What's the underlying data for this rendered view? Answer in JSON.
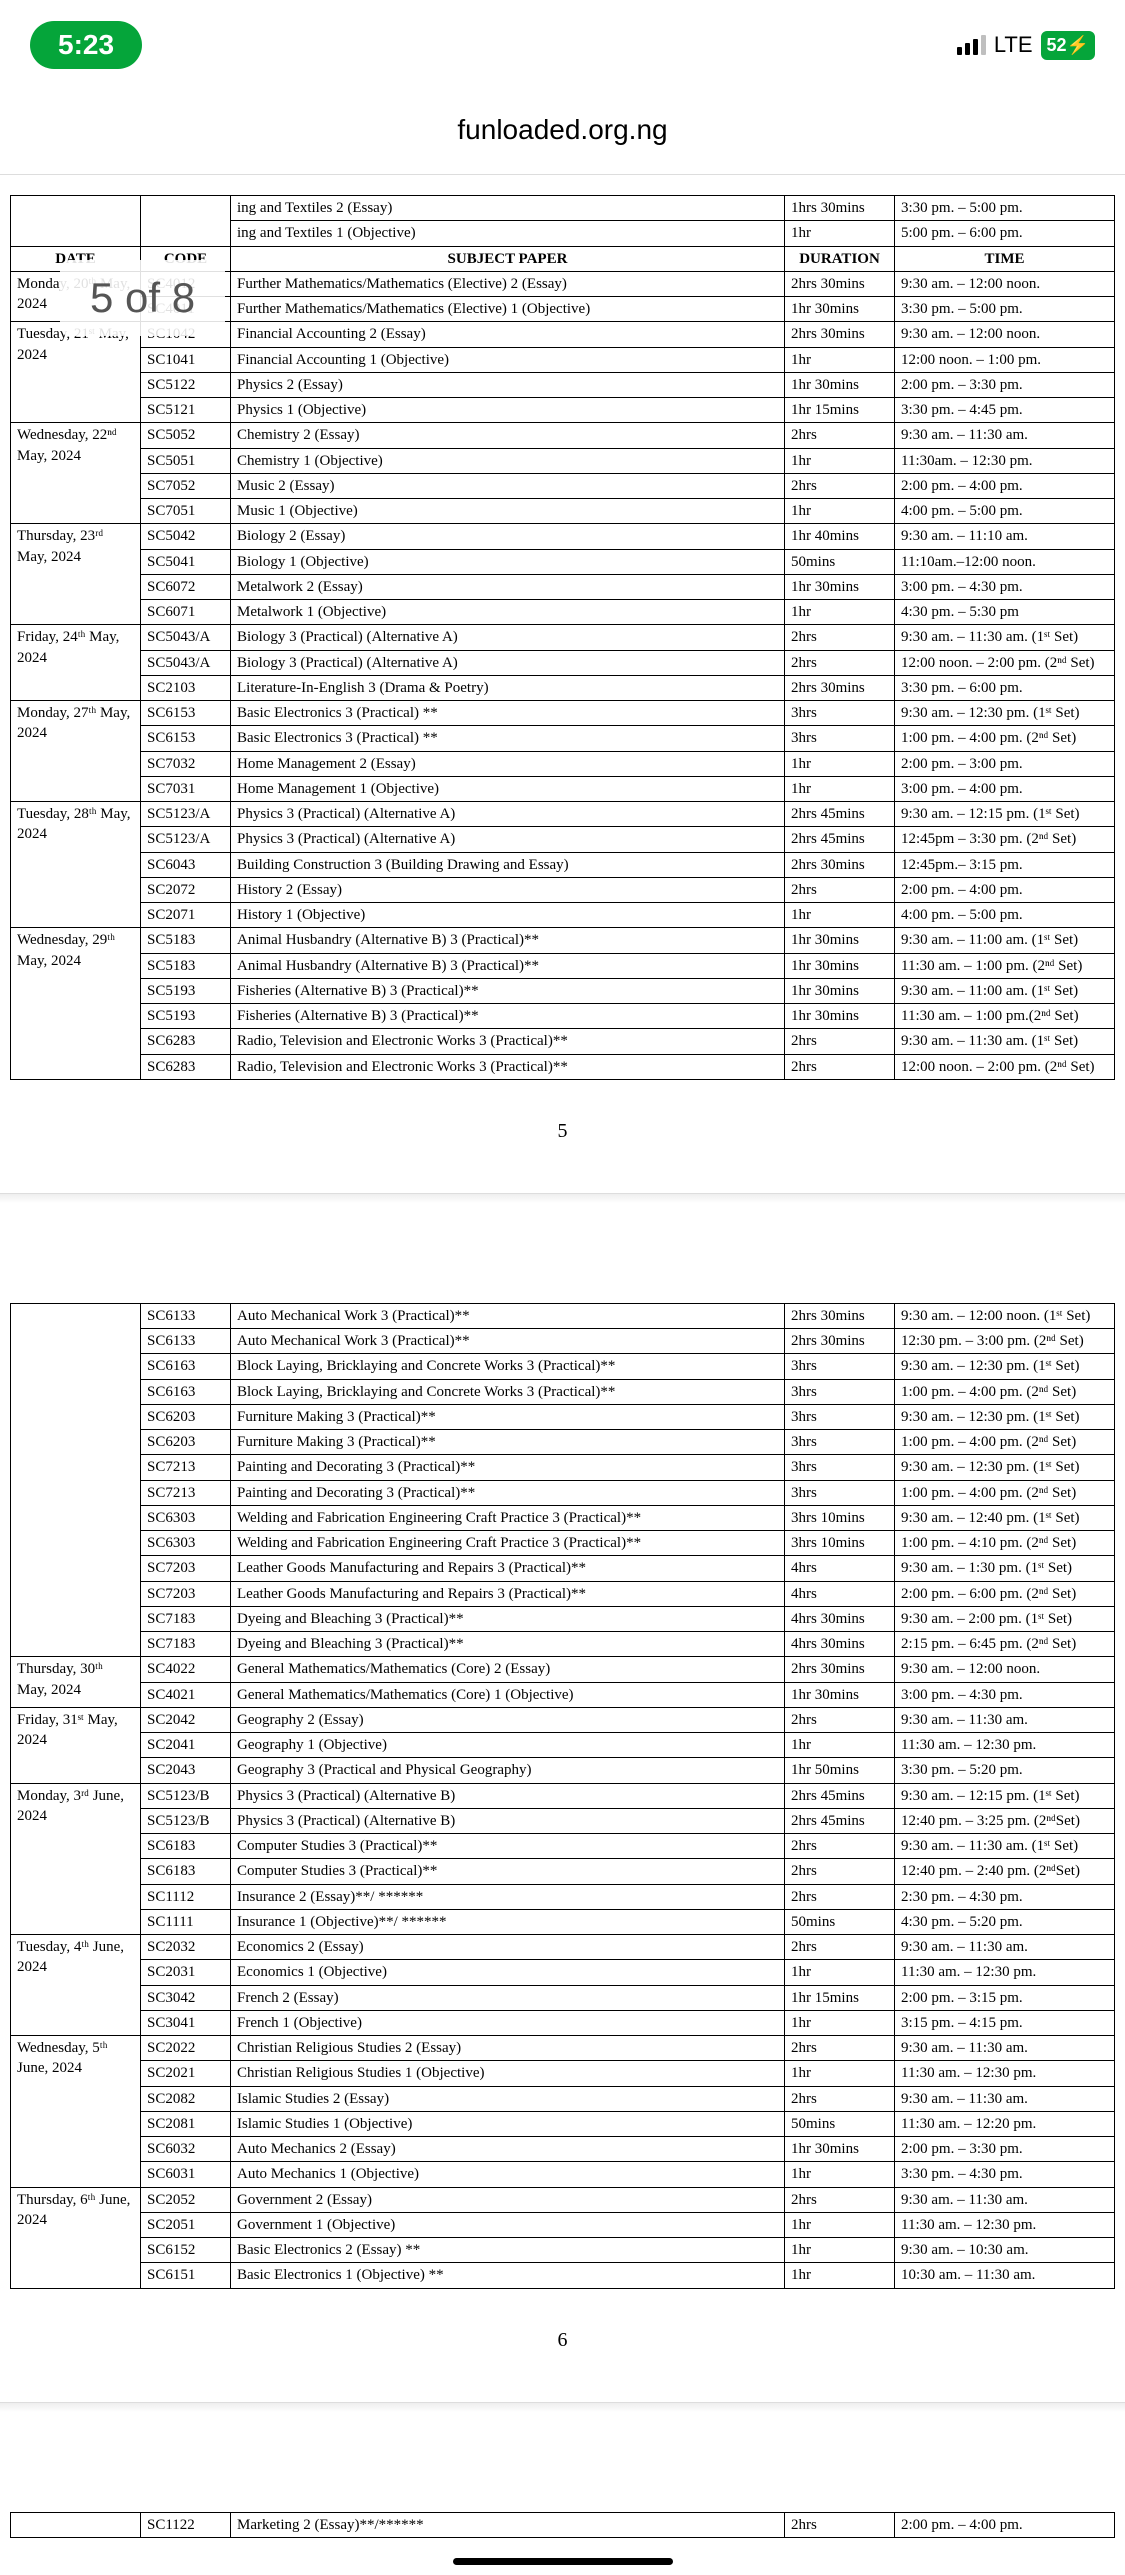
{
  "status": {
    "time": "5:23",
    "network": "LTE",
    "battery": "52"
  },
  "url": "funloaded.org.ng",
  "page_counter": "5 of 8",
  "toprows": [
    {
      "subject": "ing and Textiles 2 (Essay)",
      "duration": "1hrs 30mins",
      "time": "3:30 pm.  –  5:00 pm."
    },
    {
      "subject": "ing and Textiles 1 (Objective)",
      "duration": "1hr",
      "time": "5:00 pm.  –  6:00 pm."
    }
  ],
  "headers": {
    "date": "DATE",
    "code": "CODE",
    "subject": "SUBJECT PAPER",
    "duration": "DURATION",
    "time": "TIME"
  },
  "page5_groups": [
    {
      "date": "Monday, 20ᵗʰ May, 2024",
      "rows": [
        {
          "code": "SC4012",
          "subject": "Further Mathematics/Mathematics (Elective) 2 (Essay)",
          "duration": "2hrs 30mins",
          "time": "9:30 am.  –  12:00 noon."
        },
        {
          "code": "SC4011",
          "subject": "Further Mathematics/Mathematics (Elective) 1 (Objective)",
          "duration": "1hr 30mins",
          "time": "3:30 pm.  –  5:00 pm."
        }
      ]
    },
    {
      "date": "Tuesday, 21ˢᵗ May, 2024",
      "rows": [
        {
          "code": "SC1042",
          "subject": "Financial Accounting 2 (Essay)",
          "duration": "2hrs 30mins",
          "time": "9:30 am.  –  12:00 noon."
        },
        {
          "code": "SC1041",
          "subject": "Financial Accounting 1 (Objective)",
          "duration": "1hr",
          "time": "12:00 noon. – 1:00 pm."
        },
        {
          "code": "SC5122",
          "subject": "Physics 2 (Essay)",
          "duration": "1hr 30mins",
          "time": "2:00 pm.  –  3:30 pm."
        },
        {
          "code": "SC5121",
          "subject": "Physics 1 (Objective)",
          "duration": "1hr 15mins",
          "time": "3:30 pm.  – 4:45 pm."
        }
      ]
    },
    {
      "date": "Wednesday, 22ⁿᵈ May, 2024",
      "rows": [
        {
          "code": "SC5052",
          "subject": "Chemistry 2 (Essay)",
          "duration": "2hrs",
          "time": "9:30 am.  –  11:30 am."
        },
        {
          "code": "SC5051",
          "subject": "Chemistry 1 (Objective)",
          "duration": "1hr",
          "time": "11:30am. – 12:30 pm."
        },
        {
          "code": "SC7052",
          "subject": "Music 2 (Essay)",
          "duration": "2hrs",
          "time": "2:00 pm.  – 4:00 pm."
        },
        {
          "code": "SC7051",
          "subject": "Music 1 (Objective)",
          "duration": "1hr",
          "time": "4:00 pm.  – 5:00 pm."
        }
      ]
    },
    {
      "date": "Thursday, 23ʳᵈ May, 2024",
      "rows": [
        {
          "code": "SC5042",
          "subject": "Biology 2 (Essay)",
          "duration": "1hr 40mins",
          "time": "9:30 am. – 11:10 am."
        },
        {
          "code": "SC5041",
          "subject": "Biology 1 (Objective)",
          "duration": "50mins",
          "time": "11:10am.–12:00 noon."
        },
        {
          "code": "SC6072",
          "subject": "Metalwork 2 (Essay)",
          "duration": "1hr 30mins",
          "time": "3:00 pm. – 4:30 pm."
        },
        {
          "code": "SC6071",
          "subject": "Metalwork 1 (Objective)",
          "duration": "1hr",
          "time": "4:30 pm. – 5:30 pm"
        }
      ]
    },
    {
      "date": "Friday, 24ᵗʰ May, 2024",
      "rows": [
        {
          "code": "SC5043/A",
          "subject": "Biology 3 (Practical) (Alternative A)",
          "duration": "2hrs",
          "time": "9:30 am. – 11:30 am. (1ˢᵗ Set)"
        },
        {
          "code": "SC5043/A",
          "subject": "Biology 3 (Practical) (Alternative A)",
          "duration": "2hrs",
          "time": "12:00 noon. – 2:00 pm. (2ⁿᵈ Set)"
        },
        {
          "code": "SC2103",
          "subject": "Literature-In-English 3 (Drama & Poetry)",
          "duration": "2hrs 30mins",
          "time": "3:30 pm. – 6:00 pm."
        }
      ]
    },
    {
      "date": "Monday, 27ᵗʰ May, 2024",
      "rows": [
        {
          "code": "SC6153",
          "subject": "Basic Electronics 3 (Practical) **",
          "duration": "3hrs",
          "time": "9:30 am. – 12:30 pm. (1ˢᵗ Set)"
        },
        {
          "code": "SC6153",
          "subject": "Basic Electronics 3 (Practical) **",
          "duration": "3hrs",
          "time": "1:00 pm. – 4:00 pm. (2ⁿᵈ Set)"
        },
        {
          "code": "SC7032",
          "subject": "Home Management 2 (Essay)",
          "duration": "1hr",
          "time": "2:00 pm. – 3:00 pm."
        },
        {
          "code": "SC7031",
          "subject": "Home Management 1 (Objective)",
          "duration": "1hr",
          "time": "3:00 pm. – 4:00 pm."
        }
      ]
    },
    {
      "date": "Tuesday, 28ᵗʰ May, 2024",
      "rows": [
        {
          "code": "SC5123/A",
          "subject": "Physics 3 (Practical) (Alternative A)",
          "duration": "2hrs 45mins",
          "time": "9:30 am. – 12:15 pm. (1ˢᵗ Set)"
        },
        {
          "code": "SC5123/A",
          "subject": "Physics 3 (Practical) (Alternative A)",
          "duration": "2hrs 45mins",
          "time": "12:45pm – 3:30 pm. (2ⁿᵈ Set)"
        },
        {
          "code": "SC6043",
          "subject": "Building Construction 3 (Building Drawing and Essay)",
          "duration": "2hrs 30mins",
          "time": "12:45pm.– 3:15 pm."
        },
        {
          "code": "SC2072",
          "subject": "History 2 (Essay)",
          "duration": "2hrs",
          "time": "2:00 pm. – 4:00 pm."
        },
        {
          "code": "SC2071",
          "subject": "History 1 (Objective)",
          "duration": "1hr",
          "time": "4:00 pm. – 5:00 pm."
        }
      ]
    },
    {
      "date": "Wednesday, 29ᵗʰ May, 2024",
      "rows": [
        {
          "code": "SC5183",
          "subject": "Animal Husbandry (Alternative B) 3 (Practical)**",
          "duration": "1hr 30mins",
          "time": "9:30 am.  –  11:00 am. (1ˢᵗ Set)"
        },
        {
          "code": "SC5183",
          "subject": "Animal Husbandry (Alternative B) 3 (Practical)**",
          "duration": "1hr 30mins",
          "time": "11:30 am. –  1:00 pm. (2ⁿᵈ Set)"
        },
        {
          "code": "SC5193",
          "subject": "Fisheries (Alternative B) 3 (Practical)**",
          "duration": "1hr 30mins",
          "time": "9:30 am.  –  11:00 am. (1ˢᵗ Set)"
        },
        {
          "code": "SC5193",
          "subject": "Fisheries (Alternative B) 3 (Practical)**",
          "duration": "1hr 30mins",
          "time": "11:30 am. –  1:00 pm.(2ⁿᵈ Set)"
        },
        {
          "code": "SC6283",
          "subject": "Radio, Television and Electronic Works 3 (Practical)**",
          "duration": "2hrs",
          "time": "9:30 am.  –  11:30 am. (1ˢᵗ Set)"
        },
        {
          "code": "SC6283",
          "subject": "Radio, Television and Electronic Works 3 (Practical)**",
          "duration": "2hrs",
          "time": "12:00 noon. – 2:00 pm. (2ⁿᵈ Set)"
        }
      ]
    }
  ],
  "pagenum5": "5",
  "page6_top": [
    {
      "code": "SC6133",
      "subject": "Auto Mechanical Work 3 (Practical)**",
      "duration": "2hrs 30mins",
      "time": "9:30 am.  –  12:00 noon. (1ˢᵗ Set)"
    },
    {
      "code": "SC6133",
      "subject": "Auto Mechanical Work 3 (Practical)**",
      "duration": "2hrs 30mins",
      "time": "12:30 pm. –  3:00 pm. (2ⁿᵈ Set)"
    },
    {
      "code": "SC6163",
      "subject": "Block Laying, Bricklaying and Concrete Works 3 (Practical)**",
      "duration": "3hrs",
      "time": "9:30 am.  –  12:30 pm. (1ˢᵗ Set)"
    },
    {
      "code": "SC6163",
      "subject": "Block Laying, Bricklaying and Concrete Works 3 (Practical)**",
      "duration": "3hrs",
      "time": "1:00 pm.  –  4:00 pm. (2ⁿᵈ  Set)"
    },
    {
      "code": "SC6203",
      "subject": "Furniture Making 3 (Practical)**",
      "duration": "3hrs",
      "time": "9:30 am.  –  12:30 pm.  (1ˢᵗ Set)"
    },
    {
      "code": "SC6203",
      "subject": "Furniture Making 3 (Practical)**",
      "duration": "3hrs",
      "time": "1:00 pm.  –  4:00 pm. (2ⁿᵈ Set)"
    },
    {
      "code": "SC7213",
      "subject": "Painting and Decorating 3 (Practical)**",
      "duration": "3hrs",
      "time": "9:30 am.  –  12:30 pm. (1ˢᵗ Set)"
    },
    {
      "code": "SC7213",
      "subject": "Painting and Decorating 3 (Practical)**",
      "duration": "3hrs",
      "time": "1:00 pm.  –  4:00 pm. (2ⁿᵈ Set)"
    },
    {
      "code": "SC6303",
      "subject": "Welding and Fabrication Engineering Craft Practice 3 (Practical)**",
      "duration": "3hrs 10mins",
      "time": "9:30 am.  –  12:40 pm. (1ˢᵗ Set)"
    },
    {
      "code": "SC6303",
      "subject": "Welding and Fabrication Engineering Craft Practice 3 (Practical)**",
      "duration": "3hrs 10mins",
      "time": "1:00 pm.  –  4:10 pm. (2ⁿᵈ Set)"
    },
    {
      "code": "SC7203",
      "subject": "Leather Goods Manufacturing and Repairs 3 (Practical)**",
      "duration": "4hrs",
      "time": "9:30 am.  –  1:30 pm. (1ˢᵗ Set)"
    },
    {
      "code": "SC7203",
      "subject": "Leather Goods Manufacturing and Repairs 3 (Practical)**",
      "duration": "4hrs",
      "time": "2:00 pm.  –  6:00 pm. (2ⁿᵈ Set)"
    },
    {
      "code": "SC7183",
      "subject": "Dyeing and Bleaching 3 (Practical)**",
      "duration": "4hrs 30mins",
      "time": "9:30 am.  –  2:00 pm. (1ˢᵗ Set)"
    },
    {
      "code": "SC7183",
      "subject": "Dyeing and Bleaching 3 (Practical)**",
      "duration": "4hrs 30mins",
      "time": "2:15 pm.  –  6:45 pm. (2ⁿᵈ Set)"
    }
  ],
  "page6_groups": [
    {
      "date": "Thursday, 30ᵗʰ May, 2024",
      "rows": [
        {
          "code": "SC4022",
          "subject": "General Mathematics/Mathematics (Core) 2 (Essay)",
          "duration": "2hrs 30mins",
          "time": "9:30 am.  –  12:00 noon."
        },
        {
          "code": "SC4021",
          "subject": "General Mathematics/Mathematics (Core) 1 (Objective)",
          "duration": "1hr 30mins",
          "time": "3:00 pm.  –  4:30 pm."
        }
      ]
    },
    {
      "date": "Friday, 31ˢᵗ May, 2024",
      "rows": [
        {
          "code": "SC2042",
          "subject": "Geography 2 (Essay)",
          "duration": "2hrs",
          "time": "9:30 am.  –  11:30 am."
        },
        {
          "code": "SC2041",
          "subject": "Geography 1 (Objective)",
          "duration": "1hr",
          "time": "11:30 am. – 12:30 pm."
        },
        {
          "code": "SC2043",
          "subject": "Geography 3 (Practical and Physical Geography)",
          "duration": "1hr 50mins",
          "time": "3:30 pm.  –  5:20 pm."
        }
      ]
    },
    {
      "date": "Monday, 3ʳᵈ June, 2024",
      "rows": [
        {
          "code": "SC5123/B",
          "subject": "Physics 3 (Practical) (Alternative B)",
          "duration": "2hrs 45mins",
          "time": "9:30 am.  –  12:15 pm. (1ˢᵗ Set)"
        },
        {
          "code": "SC5123/B",
          "subject": "Physics 3 (Practical) (Alternative B)",
          "duration": "2hrs 45mins",
          "time": "12:40 pm.  – 3:25 pm. (2ⁿᵈSet)"
        },
        {
          "code": "SC6183",
          "subject": "Computer Studies 3 (Practical)**",
          "duration": "2hrs",
          "time": "9:30 am.  –  11:30 am. (1ˢᵗ Set)"
        },
        {
          "code": "SC6183",
          "subject": "Computer Studies 3 (Practical)**",
          "duration": "2hrs",
          "time": "12:40 pm.  – 2:40 pm. (2ⁿᵈSet)"
        },
        {
          "code": "SC1112",
          "subject": "Insurance 2 (Essay)**/ ******",
          "duration": "2hrs",
          "time": "2:30 pm.  –  4:30 pm."
        },
        {
          "code": "SC1111",
          "subject": "Insurance 1 (Objective)**/ ******",
          "duration": "50mins",
          "time": "4:30 pm.  –  5:20 pm."
        }
      ]
    },
    {
      "date": "Tuesday, 4ᵗʰ June, 2024",
      "rows": [
        {
          "code": "SC2032",
          "subject": "Economics 2 (Essay)",
          "duration": "2hrs",
          "time": "9:30 am.  –  11:30 am."
        },
        {
          "code": "SC2031",
          "subject": "Economics 1 (Objective)",
          "duration": "1hr",
          "time": "11:30 am. – 12:30 pm."
        },
        {
          "code": "SC3042",
          "subject": "French 2 (Essay)",
          "duration": "1hr 15mins",
          "time": "2:00 pm.  –  3:15 pm."
        },
        {
          "code": "SC3041",
          "subject": "French 1 (Objective)",
          "duration": "1hr",
          "time": "3:15 pm.  –  4:15 pm."
        }
      ]
    },
    {
      "date": "Wednesday, 5ᵗʰ June, 2024",
      "rows": [
        {
          "code": "SC2022",
          "subject": "Christian Religious Studies 2 (Essay)",
          "duration": "2hrs",
          "time": "9:30 am.  –  11:30 am."
        },
        {
          "code": "SC2021",
          "subject": "Christian Religious Studies 1 (Objective)",
          "duration": "1hr",
          "time": "11:30 am. – 12:30 pm."
        },
        {
          "code": "SC2082",
          "subject": "Islamic Studies 2 (Essay)",
          "duration": "2hrs",
          "time": "9:30 am.  – 11:30 am."
        },
        {
          "code": "SC2081",
          "subject": "Islamic Studies 1 (Objective)",
          "duration": "50mins",
          "time": "11:30 am. – 12:20 pm."
        },
        {
          "code": "SC6032",
          "subject": "Auto Mechanics 2 (Essay)",
          "duration": "1hr 30mins",
          "time": "2:00 pm.  –  3:30 pm."
        },
        {
          "code": "SC6031",
          "subject": "Auto Mechanics 1 (Objective)",
          "duration": "1hr",
          "time": "3:30 pm.  –  4:30 pm."
        }
      ]
    },
    {
      "date": "Thursday, 6ᵗʰ June, 2024",
      "rows": [
        {
          "code": "SC2052",
          "subject": "Government 2 (Essay)",
          "duration": "2hrs",
          "time": "9:30 am.  –  11:30 am."
        },
        {
          "code": "SC2051",
          "subject": "Government 1 (Objective)",
          "duration": "1hr",
          "time": "11:30 am. – 12:30 pm."
        },
        {
          "code": "SC6152",
          "subject": "Basic Electronics 2 (Essay) **",
          "duration": "1hr",
          "time": "9:30 am.  –  10:30 am."
        },
        {
          "code": "SC6151",
          "subject": "Basic Electronics 1 (Objective) **",
          "duration": "1hr",
          "time": "10:30 am. – 11:30 am."
        }
      ]
    }
  ],
  "pagenum6": "6",
  "bottom_fragment": {
    "code": "SC1122",
    "subject": "Marketing 2 (Essay)**/******",
    "duration": "2hrs",
    "time": "2:00 pm.  –  4:00 pm."
  }
}
